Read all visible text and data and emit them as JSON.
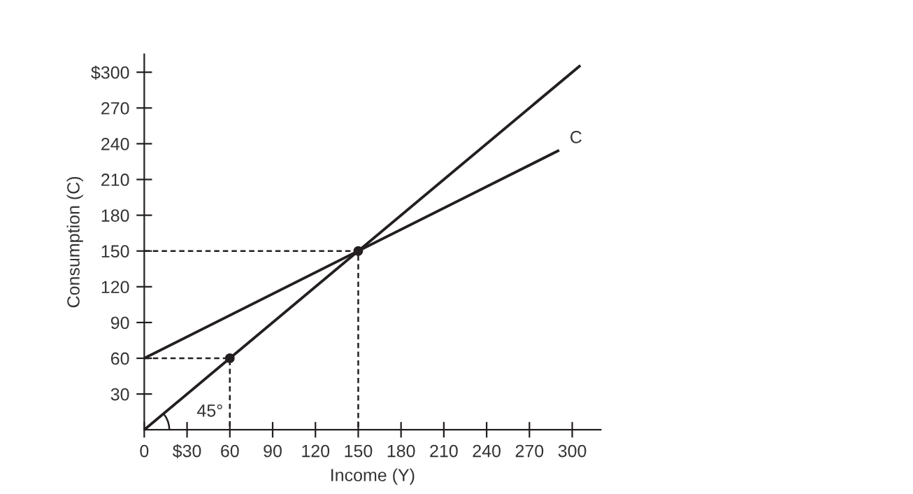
{
  "chart_data": {
    "type": "line",
    "xlabel": "Income (Y)",
    "ylabel": "Consumption (C)",
    "xlim": [
      0,
      320
    ],
    "ylim": [
      0,
      315
    ],
    "xticks": [
      0,
      {
        "value": 30,
        "label": "$30"
      },
      60,
      90,
      120,
      150,
      180,
      210,
      240,
      270,
      300
    ],
    "yticks": [
      30,
      60,
      90,
      120,
      150,
      180,
      210,
      240,
      270,
      {
        "value": 300,
        "label": "$300"
      }
    ],
    "grid": false,
    "legend": false,
    "series": [
      {
        "x": [
          0,
          305
        ],
        "values": [
          0,
          305
        ],
        "color": "#231f20",
        "line_style": "solid"
      },
      {
        "name": "C",
        "x": [
          0,
          290
        ],
        "values": [
          60,
          234
        ],
        "color": "#231f20",
        "line_style": "solid"
      },
      {
        "type": "line",
        "x": [
          0,
          60,
          60
        ],
        "values": [
          60,
          60,
          0
        ],
        "color": "#231f20",
        "line_style": "dashed"
      },
      {
        "type": "line",
        "x": [
          0,
          150,
          150
        ],
        "values": [
          150,
          150,
          0
        ],
        "color": "#231f20",
        "line_style": "dashed"
      },
      {
        "type": "scatter",
        "x": [
          60,
          150
        ],
        "values": [
          60,
          150
        ],
        "color": "#231f20",
        "marker": "circle"
      }
    ],
    "annotations": [
      "45°"
    ]
  }
}
